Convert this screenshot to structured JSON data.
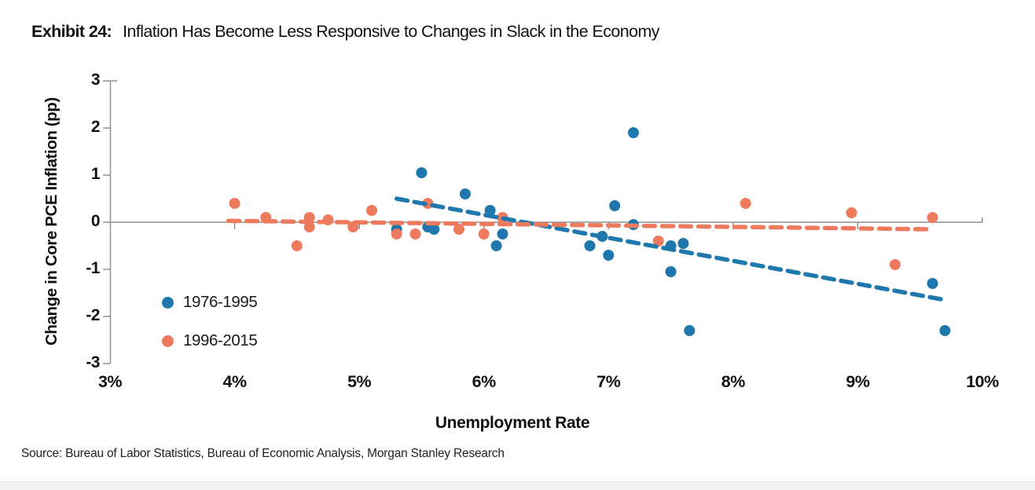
{
  "title": {
    "prefix": "Exhibit 24:",
    "text": "Inflation Has Become Less Responsive to Changes in Slack in the Economy"
  },
  "source": "Source: Bureau of Labor Statistics, Bureau of Economic Analysis, Morgan Stanley Research",
  "colors": {
    "blue": "#1f78ad",
    "orange": "#ee7a5e",
    "axis": "#8f8f8f",
    "text": "#111111"
  },
  "chart_data": {
    "type": "scatter",
    "xlabel": "Unemployment Rate",
    "ylabel": "Change in Core PCE Inflation (pp)",
    "xlim": [
      3,
      10
    ],
    "ylim": [
      -3,
      3
    ],
    "x_ticks": [
      {
        "value": 3,
        "label": "3%"
      },
      {
        "value": 4,
        "label": "4%"
      },
      {
        "value": 5,
        "label": "5%"
      },
      {
        "value": 6,
        "label": "6%"
      },
      {
        "value": 7,
        "label": "7%"
      },
      {
        "value": 8,
        "label": "8%"
      },
      {
        "value": 9,
        "label": "9%"
      },
      {
        "value": 10,
        "label": "10%"
      }
    ],
    "y_ticks": [
      {
        "value": 3,
        "label": "3"
      },
      {
        "value": 2,
        "label": "2"
      },
      {
        "value": 1,
        "label": "1"
      },
      {
        "value": 0,
        "label": "0"
      },
      {
        "value": -1,
        "label": "-1"
      },
      {
        "value": -2,
        "label": "-2"
      },
      {
        "value": -3,
        "label": "-3"
      }
    ],
    "grid": false,
    "legend_position": "inside-left",
    "series": [
      {
        "name": "1976-1995",
        "color": "#1f78ad",
        "points": [
          [
            5.3,
            -0.15
          ],
          [
            5.5,
            1.05
          ],
          [
            5.55,
            -0.1
          ],
          [
            5.6,
            -0.15
          ],
          [
            5.85,
            0.6
          ],
          [
            6.05,
            0.25
          ],
          [
            6.1,
            -0.5
          ],
          [
            6.15,
            -0.25
          ],
          [
            6.85,
            -0.5
          ],
          [
            6.95,
            -0.3
          ],
          [
            7.0,
            -0.7
          ],
          [
            7.05,
            0.35
          ],
          [
            7.2,
            1.9
          ],
          [
            7.2,
            -0.05
          ],
          [
            7.5,
            -0.5
          ],
          [
            7.5,
            -1.05
          ],
          [
            7.6,
            -0.45
          ],
          [
            7.65,
            -2.3
          ],
          [
            9.6,
            -1.3
          ],
          [
            9.7,
            -2.3
          ]
        ],
        "trendline": {
          "style": "dashed",
          "start": [
            5.3,
            0.5
          ],
          "end": [
            9.7,
            -1.65
          ]
        }
      },
      {
        "name": "1996-2015",
        "color": "#ee7a5e",
        "points": [
          [
            4.0,
            0.4
          ],
          [
            4.25,
            0.1
          ],
          [
            4.5,
            -0.5
          ],
          [
            4.6,
            0.1
          ],
          [
            4.6,
            -0.1
          ],
          [
            4.75,
            0.05
          ],
          [
            4.95,
            -0.1
          ],
          [
            5.1,
            0.25
          ],
          [
            5.3,
            -0.25
          ],
          [
            5.45,
            -0.25
          ],
          [
            5.55,
            0.4
          ],
          [
            5.8,
            -0.15
          ],
          [
            6.0,
            -0.25
          ],
          [
            6.15,
            0.1
          ],
          [
            7.4,
            -0.4
          ],
          [
            8.1,
            0.4
          ],
          [
            8.95,
            0.2
          ],
          [
            9.3,
            -0.9
          ],
          [
            9.6,
            0.1
          ]
        ],
        "trendline": {
          "style": "dashed",
          "start": [
            3.95,
            0.03
          ],
          "end": [
            9.6,
            -0.15
          ]
        }
      }
    ]
  }
}
